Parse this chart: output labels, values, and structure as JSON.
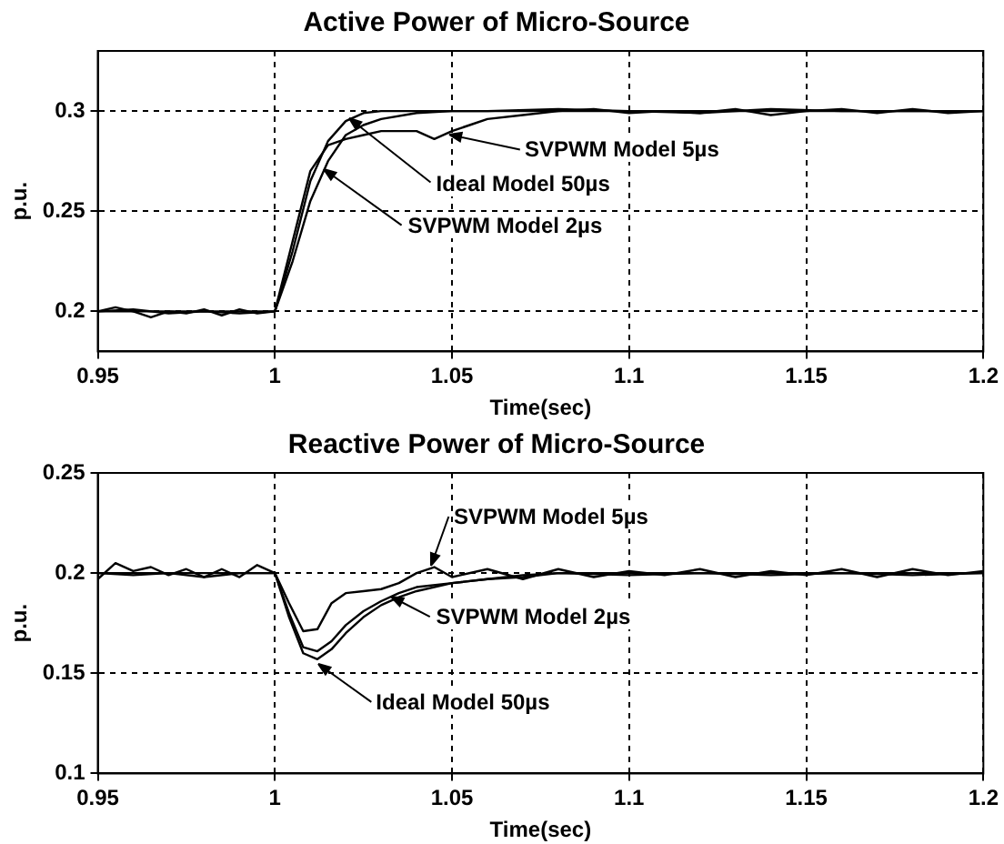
{
  "chart_data": [
    {
      "type": "line",
      "title": "Active Power of Micro-Source",
      "xlabel": "Time(sec)",
      "ylabel": "p.u.",
      "xlim": [
        0.95,
        1.2
      ],
      "xticks": [
        0.95,
        1,
        1.05,
        1.1,
        1.15,
        1.2
      ],
      "ylim": [
        0.18,
        0.33
      ],
      "yticks": [
        0.2,
        0.25,
        0.3
      ],
      "grid": true,
      "marker": "none",
      "line_style": "solid",
      "annotations": [
        {
          "text": "SVPWM Model 5µs",
          "x": 1.049,
          "y": 0.2885
        },
        {
          "text": "Ideal Model 50µs",
          "x": 1.021,
          "y": 0.296
        },
        {
          "text": "SVPWM Model 2µs",
          "x": 1.014,
          "y": 0.271
        }
      ],
      "series": [
        {
          "color": "#000000",
          "x": [
            0.95,
            0.955,
            0.96,
            0.965,
            0.97,
            0.975,
            0.98,
            0.985,
            0.99,
            0.995,
            1.0,
            1.005,
            1.01,
            1.015,
            1.02,
            1.025,
            1.03,
            1.035,
            1.04,
            1.045,
            1.05,
            1.055,
            1.06,
            1.07,
            1.08,
            1.09,
            1.1,
            1.11,
            1.12,
            1.13,
            1.14,
            1.15,
            1.16,
            1.17,
            1.18,
            1.19,
            1.2
          ],
          "values": [
            0.2,
            0.202,
            0.2,
            0.197,
            0.2,
            0.199,
            0.201,
            0.198,
            0.201,
            0.199,
            0.2,
            0.235,
            0.27,
            0.283,
            0.286,
            0.288,
            0.29,
            0.29,
            0.29,
            0.286,
            0.29,
            0.293,
            0.296,
            0.298,
            0.3,
            0.301,
            0.299,
            0.3,
            0.299,
            0.301,
            0.298,
            0.3,
            0.301,
            0.299,
            0.301,
            0.299,
            0.3
          ]
        },
        {
          "color": "#000000",
          "x": [
            0.95,
            1.0,
            1.005,
            1.01,
            1.015,
            1.02,
            1.025,
            1.03,
            1.2
          ],
          "values": [
            0.2,
            0.2,
            0.23,
            0.265,
            0.285,
            0.295,
            0.299,
            0.3,
            0.3
          ]
        },
        {
          "color": "#000000",
          "x": [
            0.95,
            0.96,
            0.97,
            0.98,
            0.99,
            1.0,
            1.005,
            1.01,
            1.015,
            1.02,
            1.025,
            1.03,
            1.04,
            1.05,
            1.06,
            1.08,
            1.1,
            1.12,
            1.14,
            1.16,
            1.18,
            1.2
          ],
          "values": [
            0.2,
            0.201,
            0.199,
            0.2,
            0.199,
            0.2,
            0.225,
            0.255,
            0.275,
            0.288,
            0.293,
            0.296,
            0.299,
            0.3,
            0.3,
            0.301,
            0.3,
            0.299,
            0.301,
            0.3,
            0.3,
            0.3
          ]
        }
      ]
    },
    {
      "type": "line",
      "title": "Reactive Power of Micro-Source",
      "xlabel": "Time(sec)",
      "ylabel": "p.u.",
      "xlim": [
        0.95,
        1.2
      ],
      "xticks": [
        0.95,
        1,
        1.05,
        1.1,
        1.15,
        1.2
      ],
      "ylim": [
        0.1,
        0.25
      ],
      "yticks": [
        0.1,
        0.15,
        0.2,
        0.25
      ],
      "grid": true,
      "marker": "none",
      "line_style": "solid",
      "annotations": [
        {
          "text": "SVPWM Model 5µs",
          "x": 1.044,
          "y": 0.2035
        },
        {
          "text": "SVPWM Model 2µs",
          "x": 1.033,
          "y": 0.188
        },
        {
          "text": "Ideal Model 50µs",
          "x": 1.012,
          "y": 0.155
        }
      ],
      "series": [
        {
          "color": "#000000",
          "x": [
            0.95,
            0.955,
            0.96,
            0.965,
            0.97,
            0.975,
            0.98,
            0.985,
            0.99,
            0.995,
            1.0,
            1.004,
            1.008,
            1.012,
            1.016,
            1.02,
            1.025,
            1.03,
            1.035,
            1.04,
            1.045,
            1.05,
            1.06,
            1.07,
            1.08,
            1.09,
            1.1,
            1.11,
            1.12,
            1.13,
            1.14,
            1.15,
            1.16,
            1.17,
            1.18,
            1.19,
            1.2
          ],
          "values": [
            0.197,
            0.205,
            0.201,
            0.203,
            0.199,
            0.202,
            0.198,
            0.202,
            0.198,
            0.204,
            0.2,
            0.185,
            0.171,
            0.172,
            0.185,
            0.19,
            0.191,
            0.192,
            0.195,
            0.2,
            0.203,
            0.198,
            0.202,
            0.197,
            0.202,
            0.198,
            0.201,
            0.199,
            0.202,
            0.198,
            0.201,
            0.199,
            0.202,
            0.198,
            0.202,
            0.199,
            0.201
          ]
        },
        {
          "color": "#000000",
          "x": [
            0.95,
            0.96,
            0.97,
            0.98,
            0.99,
            1.0,
            1.004,
            1.008,
            1.012,
            1.016,
            1.02,
            1.025,
            1.03,
            1.035,
            1.04,
            1.05,
            1.06,
            1.07,
            1.08,
            1.1,
            1.12,
            1.14,
            1.16,
            1.18,
            1.2
          ],
          "values": [
            0.2,
            0.199,
            0.2,
            0.198,
            0.2,
            0.2,
            0.18,
            0.163,
            0.161,
            0.166,
            0.174,
            0.181,
            0.186,
            0.19,
            0.193,
            0.195,
            0.197,
            0.198,
            0.2,
            0.199,
            0.2,
            0.199,
            0.2,
            0.199,
            0.2
          ]
        },
        {
          "color": "#000000",
          "x": [
            0.95,
            1.0,
            1.004,
            1.008,
            1.012,
            1.016,
            1.02,
            1.025,
            1.03,
            1.035,
            1.04,
            1.05,
            1.06,
            1.07,
            1.08,
            1.1,
            1.2
          ],
          "values": [
            0.2,
            0.2,
            0.178,
            0.16,
            0.157,
            0.162,
            0.17,
            0.178,
            0.184,
            0.188,
            0.191,
            0.195,
            0.197,
            0.199,
            0.2,
            0.2,
            0.2
          ]
        }
      ]
    }
  ]
}
